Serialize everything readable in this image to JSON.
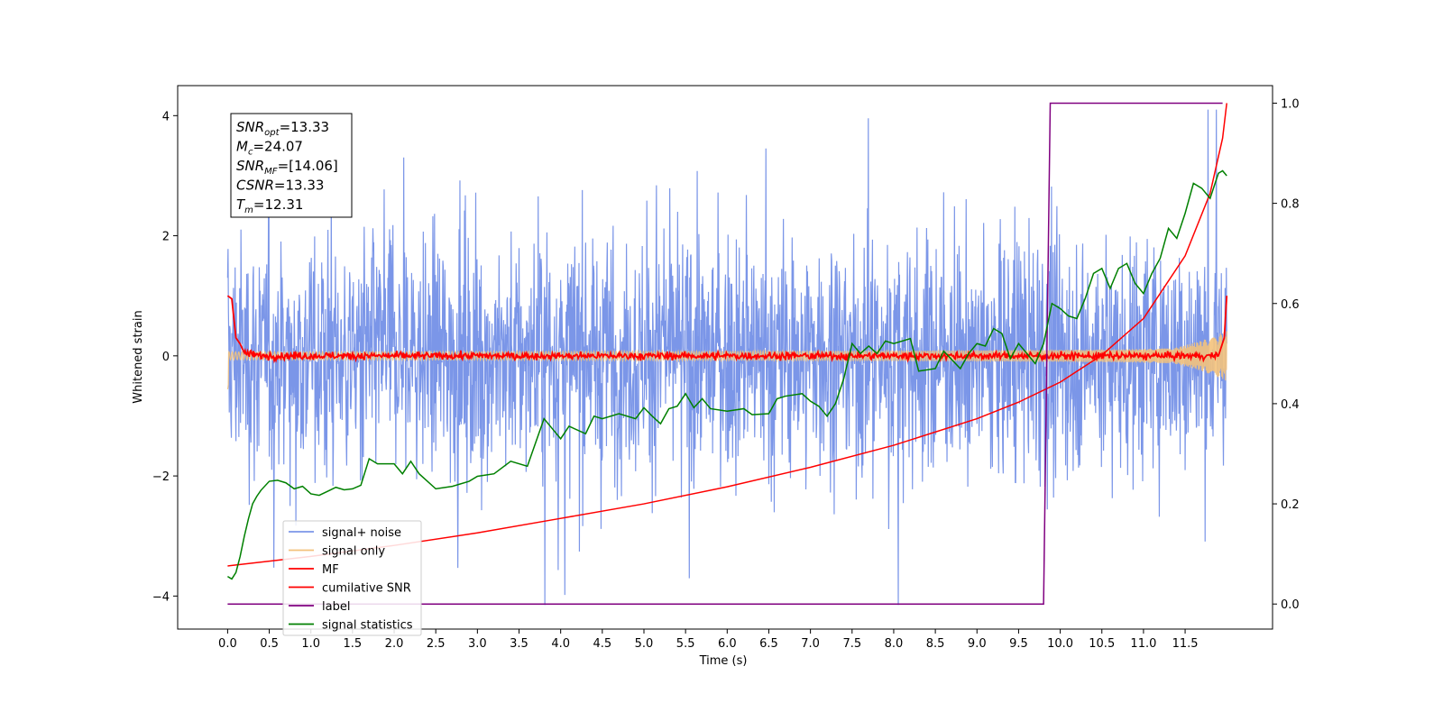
{
  "chart_data": {
    "type": "line",
    "xlabel": "Time (s)",
    "ylabel": "Whitened strain",
    "x_ticks": [
      "0.0",
      "0.5",
      "1.0",
      "1.5",
      "2.0",
      "2.5",
      "3.0",
      "3.5",
      "4.0",
      "4.5",
      "5.0",
      "5.5",
      "6.0",
      "6.5",
      "7.0",
      "7.5",
      "8.0",
      "8.5",
      "9.0",
      "9.5",
      "10.0",
      "10.5",
      "11.0",
      "11.5"
    ],
    "left_y_ticks": [
      "4",
      "2",
      "0",
      "−2",
      "−4"
    ],
    "right_y_ticks": [
      "1.0",
      "0.8",
      "0.6",
      "0.4",
      "0.2",
      "0.0"
    ],
    "xlim": [
      -0.6,
      12.55
    ],
    "ylim_left": [
      -4.55,
      4.5
    ],
    "ylim_right": [
      -0.05,
      1.035
    ],
    "legend_position": "lower-left",
    "info_box": [
      {
        "base": "SNR",
        "sub": "opt",
        "value": "=13.33"
      },
      {
        "base": "M",
        "sub": "c",
        "value": "=24.07"
      },
      {
        "base": "SNR",
        "sub": "MF",
        "value": "=[14.06]"
      },
      {
        "base": "CSNR",
        "sub": "",
        "value": "=13.33"
      },
      {
        "base": "T",
        "sub": "m",
        "value": "=12.31"
      }
    ],
    "series": [
      {
        "name": "signal+ noise",
        "axis": "left",
        "color": "#7b96e8",
        "style": "noise band, amplitude about 1.5, peaks to about ±4"
      },
      {
        "name": "signal only",
        "axis": "left",
        "color": "#f3c27c",
        "style": "chirp, amplitude grows from 0.05 to 0.9 at t=12"
      },
      {
        "name": "MF",
        "axis": "left",
        "color": "#ff0000",
        "points": [
          [
            0.0,
            1.0
          ],
          [
            0.05,
            0.95
          ],
          [
            0.1,
            0.3
          ],
          [
            0.15,
            0.2
          ],
          [
            0.2,
            0.05
          ],
          [
            0.4,
            0.0
          ],
          [
            11.9,
            0.0
          ],
          [
            11.97,
            0.3
          ],
          [
            12.0,
            1.0
          ]
        ]
      },
      {
        "name": "cumilative SNR",
        "axis": "right",
        "color": "#ff0000",
        "points": [
          [
            0.0,
            0.076
          ],
          [
            1.0,
            0.095
          ],
          [
            2.0,
            0.117
          ],
          [
            3.0,
            0.142
          ],
          [
            4.0,
            0.171
          ],
          [
            5.0,
            0.2
          ],
          [
            6.0,
            0.234
          ],
          [
            7.0,
            0.273
          ],
          [
            8.0,
            0.317
          ],
          [
            9.0,
            0.37
          ],
          [
            9.5,
            0.403
          ],
          [
            10.0,
            0.443
          ],
          [
            10.5,
            0.497
          ],
          [
            11.0,
            0.57
          ],
          [
            11.5,
            0.695
          ],
          [
            11.8,
            0.82
          ],
          [
            11.95,
            0.93
          ],
          [
            12.0,
            1.0
          ]
        ]
      },
      {
        "name": "label",
        "axis": "right",
        "color": "#800080",
        "points": [
          [
            0.0,
            0.0
          ],
          [
            9.8,
            0.0
          ],
          [
            9.88,
            1.0
          ],
          [
            11.95,
            1.0
          ]
        ]
      },
      {
        "name": "signal statistics",
        "axis": "right",
        "color": "#008000",
        "points": [
          [
            0.0,
            0.055
          ],
          [
            0.05,
            0.05
          ],
          [
            0.1,
            0.063
          ],
          [
            0.15,
            0.095
          ],
          [
            0.2,
            0.135
          ],
          [
            0.25,
            0.17
          ],
          [
            0.3,
            0.2
          ],
          [
            0.35,
            0.215
          ],
          [
            0.4,
            0.227
          ],
          [
            0.5,
            0.245
          ],
          [
            0.6,
            0.247
          ],
          [
            0.7,
            0.242
          ],
          [
            0.8,
            0.23
          ],
          [
            0.9,
            0.235
          ],
          [
            1.0,
            0.22
          ],
          [
            1.1,
            0.217
          ],
          [
            1.2,
            0.225
          ],
          [
            1.3,
            0.233
          ],
          [
            1.4,
            0.228
          ],
          [
            1.5,
            0.23
          ],
          [
            1.6,
            0.237
          ],
          [
            1.7,
            0.29
          ],
          [
            1.8,
            0.28
          ],
          [
            2.0,
            0.28
          ],
          [
            2.1,
            0.26
          ],
          [
            2.2,
            0.285
          ],
          [
            2.3,
            0.26
          ],
          [
            2.5,
            0.23
          ],
          [
            2.7,
            0.235
          ],
          [
            2.9,
            0.245
          ],
          [
            3.0,
            0.255
          ],
          [
            3.2,
            0.26
          ],
          [
            3.4,
            0.285
          ],
          [
            3.6,
            0.275
          ],
          [
            3.8,
            0.37
          ],
          [
            3.9,
            0.35
          ],
          [
            4.0,
            0.33
          ],
          [
            4.1,
            0.355
          ],
          [
            4.3,
            0.34
          ],
          [
            4.4,
            0.375
          ],
          [
            4.5,
            0.37
          ],
          [
            4.7,
            0.38
          ],
          [
            4.9,
            0.37
          ],
          [
            5.0,
            0.392
          ],
          [
            5.1,
            0.375
          ],
          [
            5.2,
            0.36
          ],
          [
            5.3,
            0.39
          ],
          [
            5.4,
            0.395
          ],
          [
            5.5,
            0.42
          ],
          [
            5.6,
            0.392
          ],
          [
            5.7,
            0.41
          ],
          [
            5.8,
            0.39
          ],
          [
            6.0,
            0.385
          ],
          [
            6.2,
            0.39
          ],
          [
            6.3,
            0.378
          ],
          [
            6.5,
            0.38
          ],
          [
            6.6,
            0.41
          ],
          [
            6.7,
            0.415
          ],
          [
            6.9,
            0.42
          ],
          [
            7.0,
            0.405
          ],
          [
            7.1,
            0.395
          ],
          [
            7.2,
            0.375
          ],
          [
            7.3,
            0.4
          ],
          [
            7.4,
            0.45
          ],
          [
            7.5,
            0.52
          ],
          [
            7.6,
            0.5
          ],
          [
            7.7,
            0.515
          ],
          [
            7.8,
            0.5
          ],
          [
            7.9,
            0.525
          ],
          [
            8.0,
            0.52
          ],
          [
            8.2,
            0.53
          ],
          [
            8.3,
            0.465
          ],
          [
            8.5,
            0.47
          ],
          [
            8.6,
            0.505
          ],
          [
            8.8,
            0.47
          ],
          [
            8.9,
            0.5
          ],
          [
            9.0,
            0.52
          ],
          [
            9.1,
            0.515
          ],
          [
            9.2,
            0.55
          ],
          [
            9.3,
            0.54
          ],
          [
            9.4,
            0.49
          ],
          [
            9.5,
            0.52
          ],
          [
            9.6,
            0.5
          ],
          [
            9.7,
            0.48
          ],
          [
            9.8,
            0.52
          ],
          [
            9.9,
            0.6
          ],
          [
            10.0,
            0.59
          ],
          [
            10.1,
            0.575
          ],
          [
            10.2,
            0.57
          ],
          [
            10.3,
            0.61
          ],
          [
            10.4,
            0.66
          ],
          [
            10.5,
            0.67
          ],
          [
            10.6,
            0.63
          ],
          [
            10.7,
            0.67
          ],
          [
            10.8,
            0.68
          ],
          [
            10.9,
            0.64
          ],
          [
            11.0,
            0.62
          ],
          [
            11.1,
            0.66
          ],
          [
            11.2,
            0.69
          ],
          [
            11.3,
            0.75
          ],
          [
            11.4,
            0.73
          ],
          [
            11.5,
            0.78
          ],
          [
            11.6,
            0.84
          ],
          [
            11.7,
            0.83
          ],
          [
            11.8,
            0.81
          ],
          [
            11.9,
            0.86
          ],
          [
            11.95,
            0.865
          ],
          [
            12.0,
            0.855
          ]
        ]
      }
    ]
  }
}
